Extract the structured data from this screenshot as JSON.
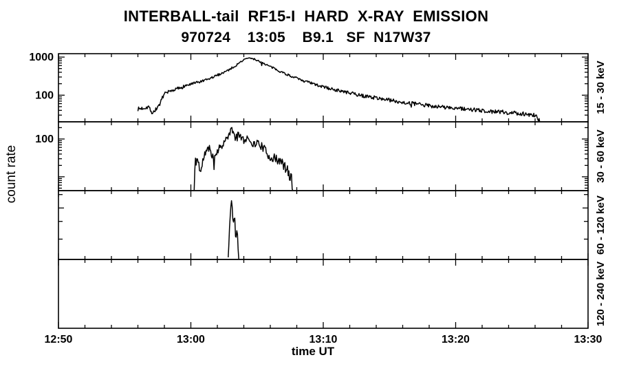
{
  "title": "INTERBALL-tail  RF15-I  HARD  X-RAY  EMISSION",
  "subtitle": "970724    13:05    B9.1   SF  N17W37",
  "y_axis_label": "count rate",
  "x_axis_label": "time UT",
  "colors": {
    "foreground": "#000000",
    "background": "#ffffff"
  },
  "chart_data": {
    "type": "line",
    "title": "INTERBALL-tail RF15-I HARD X-RAY EMISSION",
    "subtitle": "970724 13:05 B9.1 SF N17W37",
    "xlabel": "time UT",
    "ylabel": "count rate",
    "x_axis": {
      "range_min": [
        0,
        40
      ],
      "major_every_min": 10,
      "minor_every_min": 2,
      "major_ticks": [
        {
          "label": "12:50",
          "min": 0
        },
        {
          "label": "13:00",
          "min": 10
        },
        {
          "label": "13:10",
          "min": 20
        },
        {
          "label": "13:20",
          "min": 30
        },
        {
          "label": "13:30",
          "min": 40
        }
      ]
    },
    "panels": [
      {
        "band": "15 - 30 keV",
        "yscale": "log",
        "ylim": [
          20,
          1230
        ],
        "log_minor_ticks": true,
        "ytick_labels": [
          {
            "value": 1000,
            "label": "1000"
          },
          {
            "value": 100,
            "label": "100"
          }
        ],
        "series": {
          "name": "15-30 keV count rate",
          "noise_dex": 0.022,
          "noise_low_boost": 1.1,
          "spike_prob": 0.012,
          "spike_dex": 0.15,
          "seed": 7,
          "anchors": [
            [
              6.0,
              43
            ],
            [
              6.4,
              46
            ],
            [
              6.8,
              50
            ],
            [
              7.1,
              34
            ],
            [
              7.4,
              44
            ],
            [
              7.7,
              62
            ],
            [
              7.95,
              105
            ],
            [
              8.3,
              122
            ],
            [
              9.0,
              150
            ],
            [
              9.6,
              178
            ],
            [
              10.4,
              210
            ],
            [
              11.2,
              250
            ],
            [
              12.0,
              335
            ],
            [
              12.8,
              450
            ],
            [
              13.4,
              600
            ],
            [
              13.9,
              810
            ],
            [
              14.3,
              950
            ],
            [
              14.8,
              880
            ],
            [
              15.4,
              715
            ],
            [
              16.0,
              560
            ],
            [
              16.8,
              415
            ],
            [
              17.6,
              310
            ],
            [
              18.6,
              232
            ],
            [
              19.6,
              180
            ],
            [
              20.6,
              146
            ],
            [
              21.8,
              118
            ],
            [
              23.0,
              96
            ],
            [
              24.4,
              81
            ],
            [
              26.0,
              65
            ],
            [
              27.6,
              55
            ],
            [
              29.2,
              48
            ],
            [
              30.8,
              43
            ],
            [
              32.4,
              38
            ],
            [
              34.0,
              35
            ],
            [
              35.4,
              32
            ],
            [
              36.1,
              29
            ],
            [
              36.35,
              20
            ]
          ]
        }
      },
      {
        "band": "30 - 60 keV",
        "yscale": "log",
        "ylim": [
          4.3,
          285
        ],
        "log_minor_ticks": true,
        "ytick_labels": [
          {
            "value": 100,
            "label": "100"
          }
        ],
        "series": {
          "name": "30-60 keV count rate",
          "noise_dex": 0.07,
          "noise_low_boost": 1.1,
          "spike_prob": 0.05,
          "spike_dex": 0.45,
          "seed": 11,
          "anchors": [
            [
              10.25,
              4.3
            ],
            [
              10.32,
              24
            ],
            [
              10.5,
              30
            ],
            [
              10.75,
              13
            ],
            [
              11.0,
              38
            ],
            [
              11.4,
              57
            ],
            [
              11.7,
              34
            ],
            [
              12.2,
              62
            ],
            [
              12.6,
              88
            ],
            [
              12.9,
              134
            ],
            [
              13.1,
              185
            ],
            [
              13.35,
              108
            ],
            [
              13.6,
              140
            ],
            [
              14.0,
              88
            ],
            [
              14.3,
              115
            ],
            [
              14.7,
              72
            ],
            [
              15.1,
              80
            ],
            [
              15.5,
              56
            ],
            [
              15.9,
              36
            ],
            [
              16.3,
              30
            ],
            [
              16.8,
              25
            ],
            [
              17.2,
              16
            ],
            [
              17.55,
              10
            ],
            [
              17.75,
              4.3
            ]
          ]
        }
      },
      {
        "band": "60 - 120 keV",
        "yscale": "log",
        "ylim": [
          0.7,
          24.5
        ],
        "log_minor_ticks": false,
        "custom_yticks": [
          {
            "value": 20
          },
          {
            "value": 10,
            "major": true
          },
          {
            "value": 5
          },
          {
            "value": 2
          }
        ],
        "ytick_labels": [],
        "series": {
          "name": "60-120 keV count rate",
          "noise_dex": 0.06,
          "noise_low_boost": 0.6,
          "spike_prob": 0.02,
          "spike_dex": 0.25,
          "seed": 3,
          "anchors": [
            [
              12.82,
              0.7
            ],
            [
              12.92,
              3.2
            ],
            [
              13.0,
              10
            ],
            [
              13.08,
              17
            ],
            [
              13.18,
              4.4
            ],
            [
              13.3,
              7.0
            ],
            [
              13.42,
              2.4
            ],
            [
              13.5,
              3.0
            ],
            [
              13.62,
              0.7
            ]
          ]
        }
      },
      {
        "band": "120 - 240 keV",
        "yscale": "log",
        "ylim": null,
        "log_minor_ticks": false,
        "ytick_labels": [],
        "series": null
      }
    ]
  }
}
